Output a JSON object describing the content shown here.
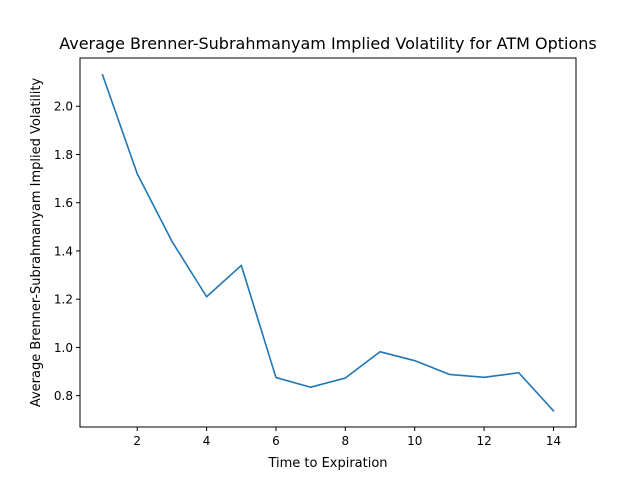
{
  "chart_data": {
    "type": "line",
    "title": "Average Brenner-Subrahmanyam Implied Volatility for ATM Options",
    "xlabel": "Time to Expiration",
    "ylabel": "Average Brenner-Subrahmanyam Implied Volatility",
    "xlim": [
      0.35,
      14.65
    ],
    "ylim": [
      0.67,
      2.2
    ],
    "x_ticks": [
      2,
      4,
      6,
      8,
      10,
      12,
      14
    ],
    "x_tick_labels": [
      "2",
      "4",
      "6",
      "8",
      "10",
      "12",
      "14"
    ],
    "y_ticks": [
      0.8,
      1.0,
      1.2,
      1.4,
      1.6,
      1.8,
      2.0
    ],
    "y_tick_labels": [
      "0.8",
      "1.0",
      "1.2",
      "1.4",
      "1.6",
      "1.8",
      "2.0"
    ],
    "grid": false,
    "series": [
      {
        "color": "#1f77b4",
        "x": [
          1,
          2,
          3,
          4,
          5,
          6,
          7,
          8,
          9,
          10,
          11,
          12,
          13,
          14
        ],
        "values": [
          2.13,
          1.72,
          1.44,
          1.21,
          1.34,
          0.875,
          0.835,
          0.873,
          0.982,
          0.945,
          0.888,
          0.876,
          0.895,
          0.737
        ]
      }
    ]
  }
}
